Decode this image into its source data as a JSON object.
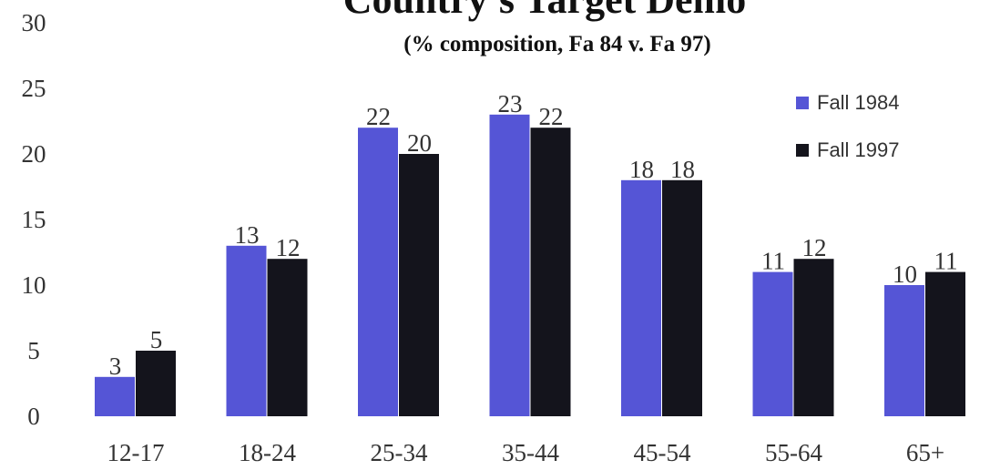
{
  "chart_data": {
    "type": "bar",
    "title": "Country's Target Demo",
    "subtitle": "(% composition, Fa 84 v. Fa 97)",
    "xlabel": "",
    "ylabel": "",
    "categories": [
      "12-17",
      "18-24",
      "25-34",
      "35-44",
      "45-54",
      "55-64",
      "65+"
    ],
    "series": [
      {
        "name": "Fall 1984",
        "color": "#5555d6",
        "values": [
          3,
          13,
          22,
          23,
          18,
          11,
          10
        ]
      },
      {
        "name": "Fall 1997",
        "color": "#14141c",
        "values": [
          5,
          12,
          20,
          22,
          18,
          12,
          11
        ]
      }
    ],
    "y_ticks": [
      0,
      5,
      10,
      15,
      20,
      25,
      30
    ],
    "ylim": [
      0,
      30
    ],
    "grid": false,
    "legend": "top-right"
  }
}
